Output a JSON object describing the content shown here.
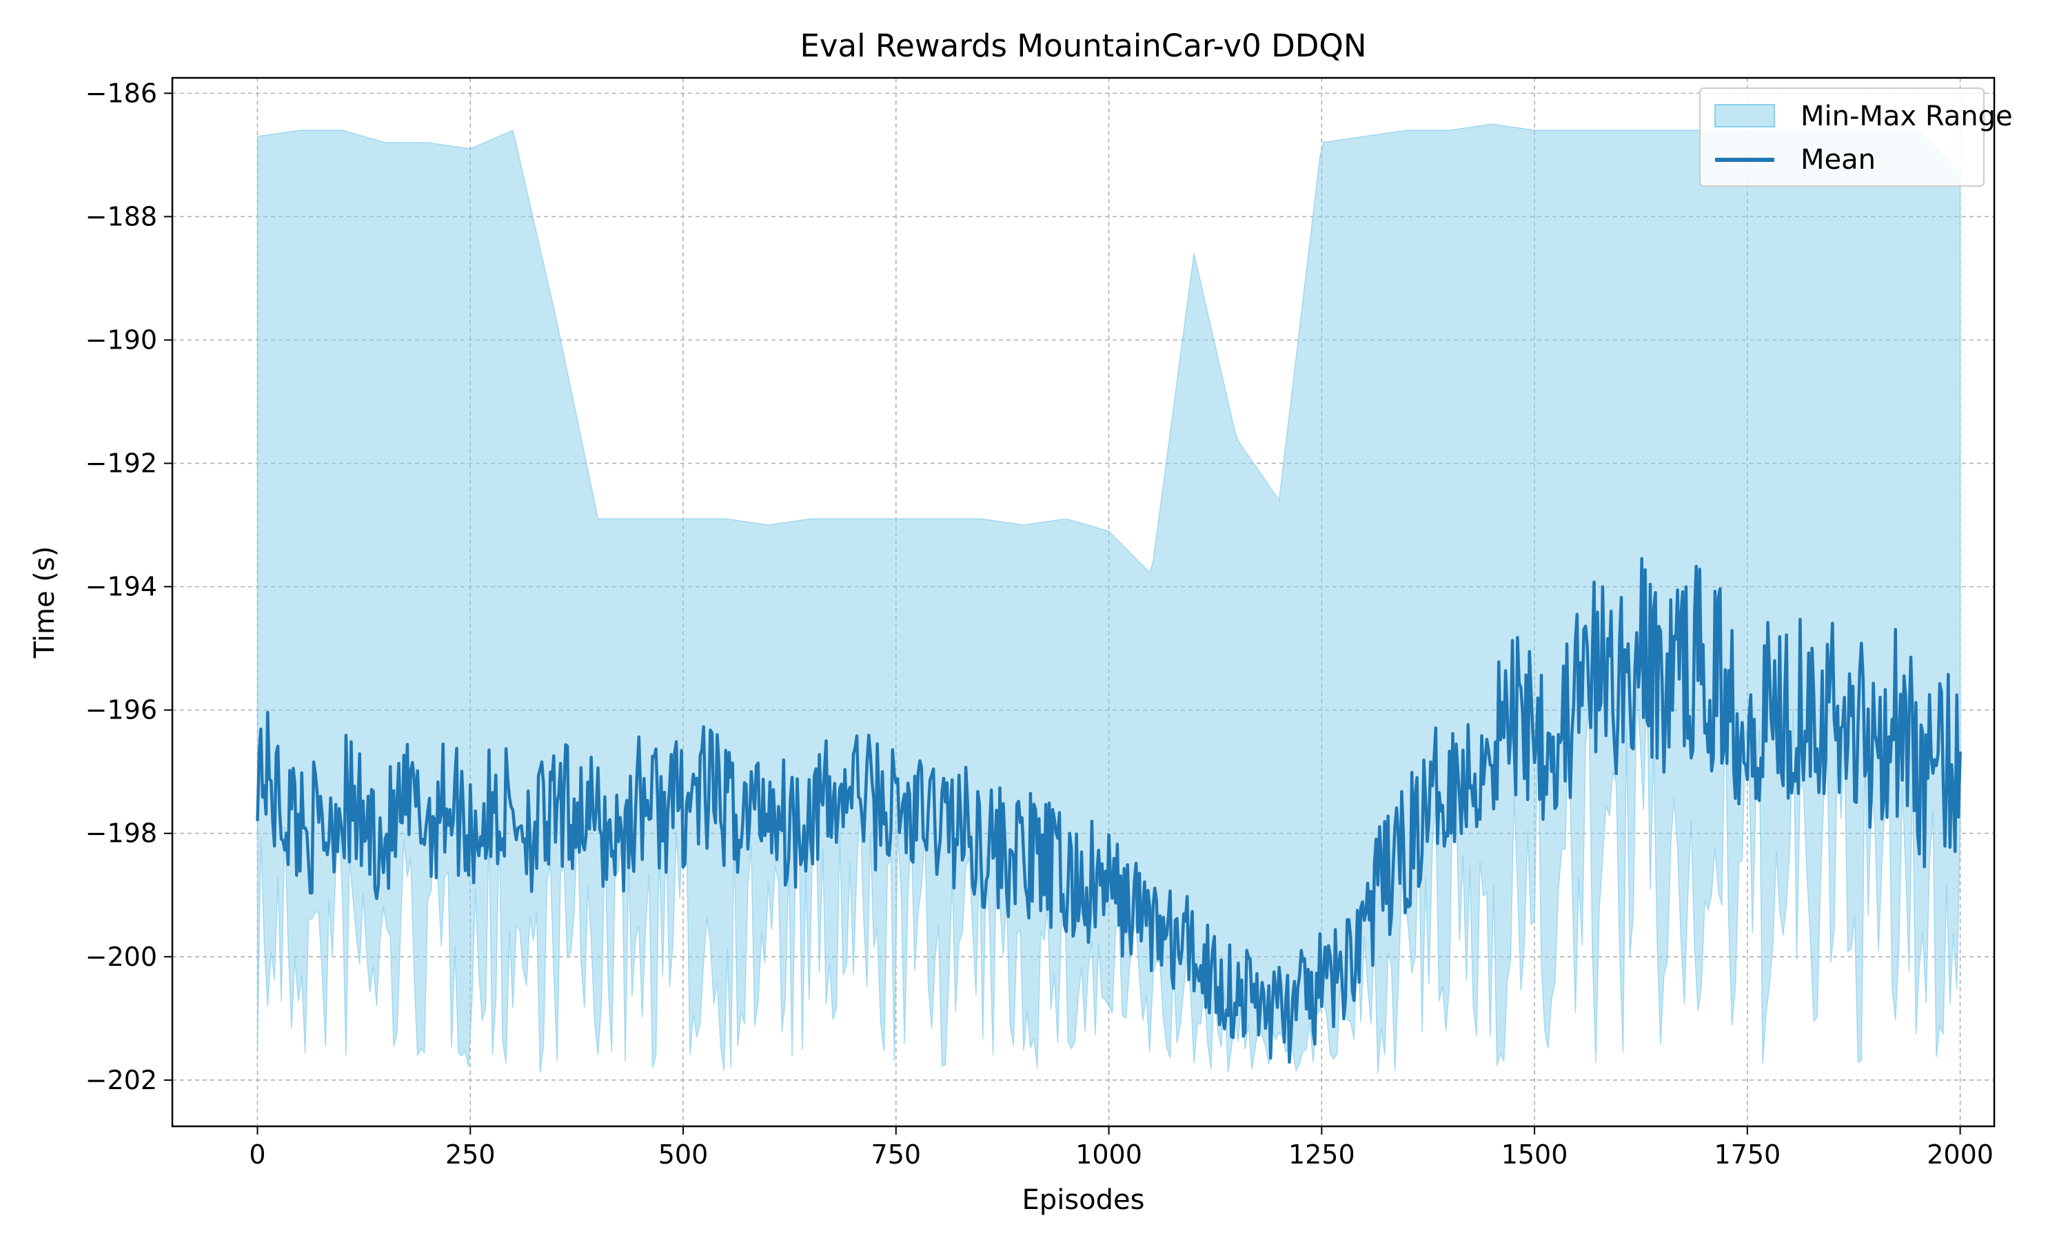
{
  "chart_data": {
    "type": "line",
    "title": "Eval Rewards MountainCar-v0 DDQN",
    "xlabel": "Episodes",
    "ylabel": "Time (s)",
    "xlim": [
      -100,
      2040
    ],
    "ylim": [
      -202.75,
      -185.75
    ],
    "xticks": [
      0,
      250,
      500,
      750,
      1000,
      1250,
      1500,
      1750,
      2000
    ],
    "yticks": [
      -202,
      -200,
      -198,
      -196,
      -194,
      -192,
      -190,
      -188,
      -186
    ],
    "xtick_labels": [
      "0",
      "250",
      "500",
      "750",
      "1000",
      "1250",
      "1500",
      "1750",
      "2000"
    ],
    "ytick_labels": [
      "−202",
      "−200",
      "−198",
      "−196",
      "−194",
      "−192",
      "−190",
      "−188",
      "−186"
    ],
    "grid": true,
    "legend_position": "top-right",
    "legend": [
      {
        "label": "Min-Max Range",
        "kind": "area"
      },
      {
        "label": "Mean",
        "kind": "line"
      }
    ],
    "colors": {
      "range_fill": "#87CEEB",
      "range_stroke": "#87CEEB",
      "mean_line": "#1f77b4"
    },
    "series": [
      {
        "name": "Min-Max Range",
        "type": "area",
        "x": [
          0,
          50,
          100,
          150,
          200,
          250,
          300,
          350,
          400,
          450,
          500,
          550,
          600,
          650,
          700,
          750,
          800,
          850,
          900,
          950,
          1000,
          1050,
          1100,
          1150,
          1200,
          1250,
          1300,
          1350,
          1400,
          1450,
          1500,
          1550,
          1600,
          1650,
          1700,
          1750,
          1800,
          1850,
          1900,
          1950,
          2000
        ],
        "upper": [
          -186.7,
          -186.6,
          -186.6,
          -186.8,
          -186.8,
          -186.9,
          -186.6,
          -189.6,
          -192.9,
          -192.9,
          -192.9,
          -192.9,
          -193.0,
          -192.9,
          -192.9,
          -192.9,
          -192.9,
          -192.9,
          -193.0,
          -192.9,
          -193.1,
          -193.8,
          -188.6,
          -191.6,
          -192.6,
          -186.8,
          -186.7,
          -186.6,
          -186.6,
          -186.5,
          -186.6,
          -186.6,
          -186.6,
          -186.6,
          -186.6,
          -186.6,
          -186.6,
          -186.6,
          -186.6,
          -186.6,
          -187.3
        ],
        "lower": [
          -201.9,
          -201.9,
          -201.9,
          -201.9,
          -201.9,
          -201.9,
          -201.9,
          -201.9,
          -201.9,
          -201.9,
          -201.9,
          -201.9,
          -201.9,
          -201.9,
          -201.9,
          -201.9,
          -201.9,
          -201.9,
          -201.9,
          -201.9,
          -201.9,
          -201.9,
          -201.9,
          -201.9,
          -201.9,
          -201.9,
          -201.9,
          -201.9,
          -201.9,
          -201.9,
          -201.9,
          -201.9,
          -201.9,
          -201.9,
          -201.9,
          -201.9,
          -201.9,
          -201.9,
          -201.9,
          -201.9,
          -201.9
        ]
      },
      {
        "name": "Mean",
        "type": "line",
        "x": [
          0,
          25,
          50,
          75,
          100,
          125,
          150,
          175,
          200,
          225,
          250,
          275,
          300,
          325,
          350,
          375,
          400,
          425,
          450,
          475,
          500,
          525,
          550,
          575,
          600,
          625,
          650,
          675,
          700,
          725,
          750,
          775,
          800,
          825,
          850,
          875,
          900,
          925,
          950,
          975,
          1000,
          1025,
          1050,
          1075,
          1100,
          1125,
          1150,
          1175,
          1200,
          1225,
          1250,
          1275,
          1300,
          1325,
          1350,
          1375,
          1400,
          1425,
          1450,
          1475,
          1500,
          1525,
          1550,
          1575,
          1600,
          1625,
          1650,
          1675,
          1700,
          1725,
          1750,
          1775,
          1800,
          1825,
          1850,
          1875,
          1900,
          1925,
          1950,
          1975,
          2000
        ],
        "values": [
          -196.7,
          -197.5,
          -197.8,
          -198.0,
          -197.4,
          -197.9,
          -198.1,
          -197.6,
          -197.8,
          -197.4,
          -197.9,
          -197.7,
          -197.6,
          -197.9,
          -197.8,
          -197.5,
          -197.9,
          -198.1,
          -197.4,
          -197.6,
          -197.5,
          -197.3,
          -197.6,
          -197.7,
          -197.4,
          -197.9,
          -197.5,
          -197.6,
          -197.2,
          -197.5,
          -197.6,
          -197.8,
          -197.7,
          -197.9,
          -198.1,
          -198.3,
          -198.4,
          -198.5,
          -198.8,
          -198.9,
          -198.9,
          -199.2,
          -199.4,
          -199.8,
          -199.9,
          -200.3,
          -200.6,
          -200.7,
          -200.9,
          -200.8,
          -200.5,
          -200.3,
          -199.4,
          -198.8,
          -198.2,
          -197.6,
          -197.0,
          -197.2,
          -196.4,
          -196.1,
          -195.9,
          -196.6,
          -195.8,
          -195.4,
          -195.6,
          -195.1,
          -195.6,
          -195.2,
          -195.3,
          -195.7,
          -196.1,
          -195.9,
          -195.9,
          -195.6,
          -196.1,
          -196.2,
          -196.4,
          -196.1,
          -196.9,
          -197.1,
          -196.8
        ]
      }
    ]
  }
}
